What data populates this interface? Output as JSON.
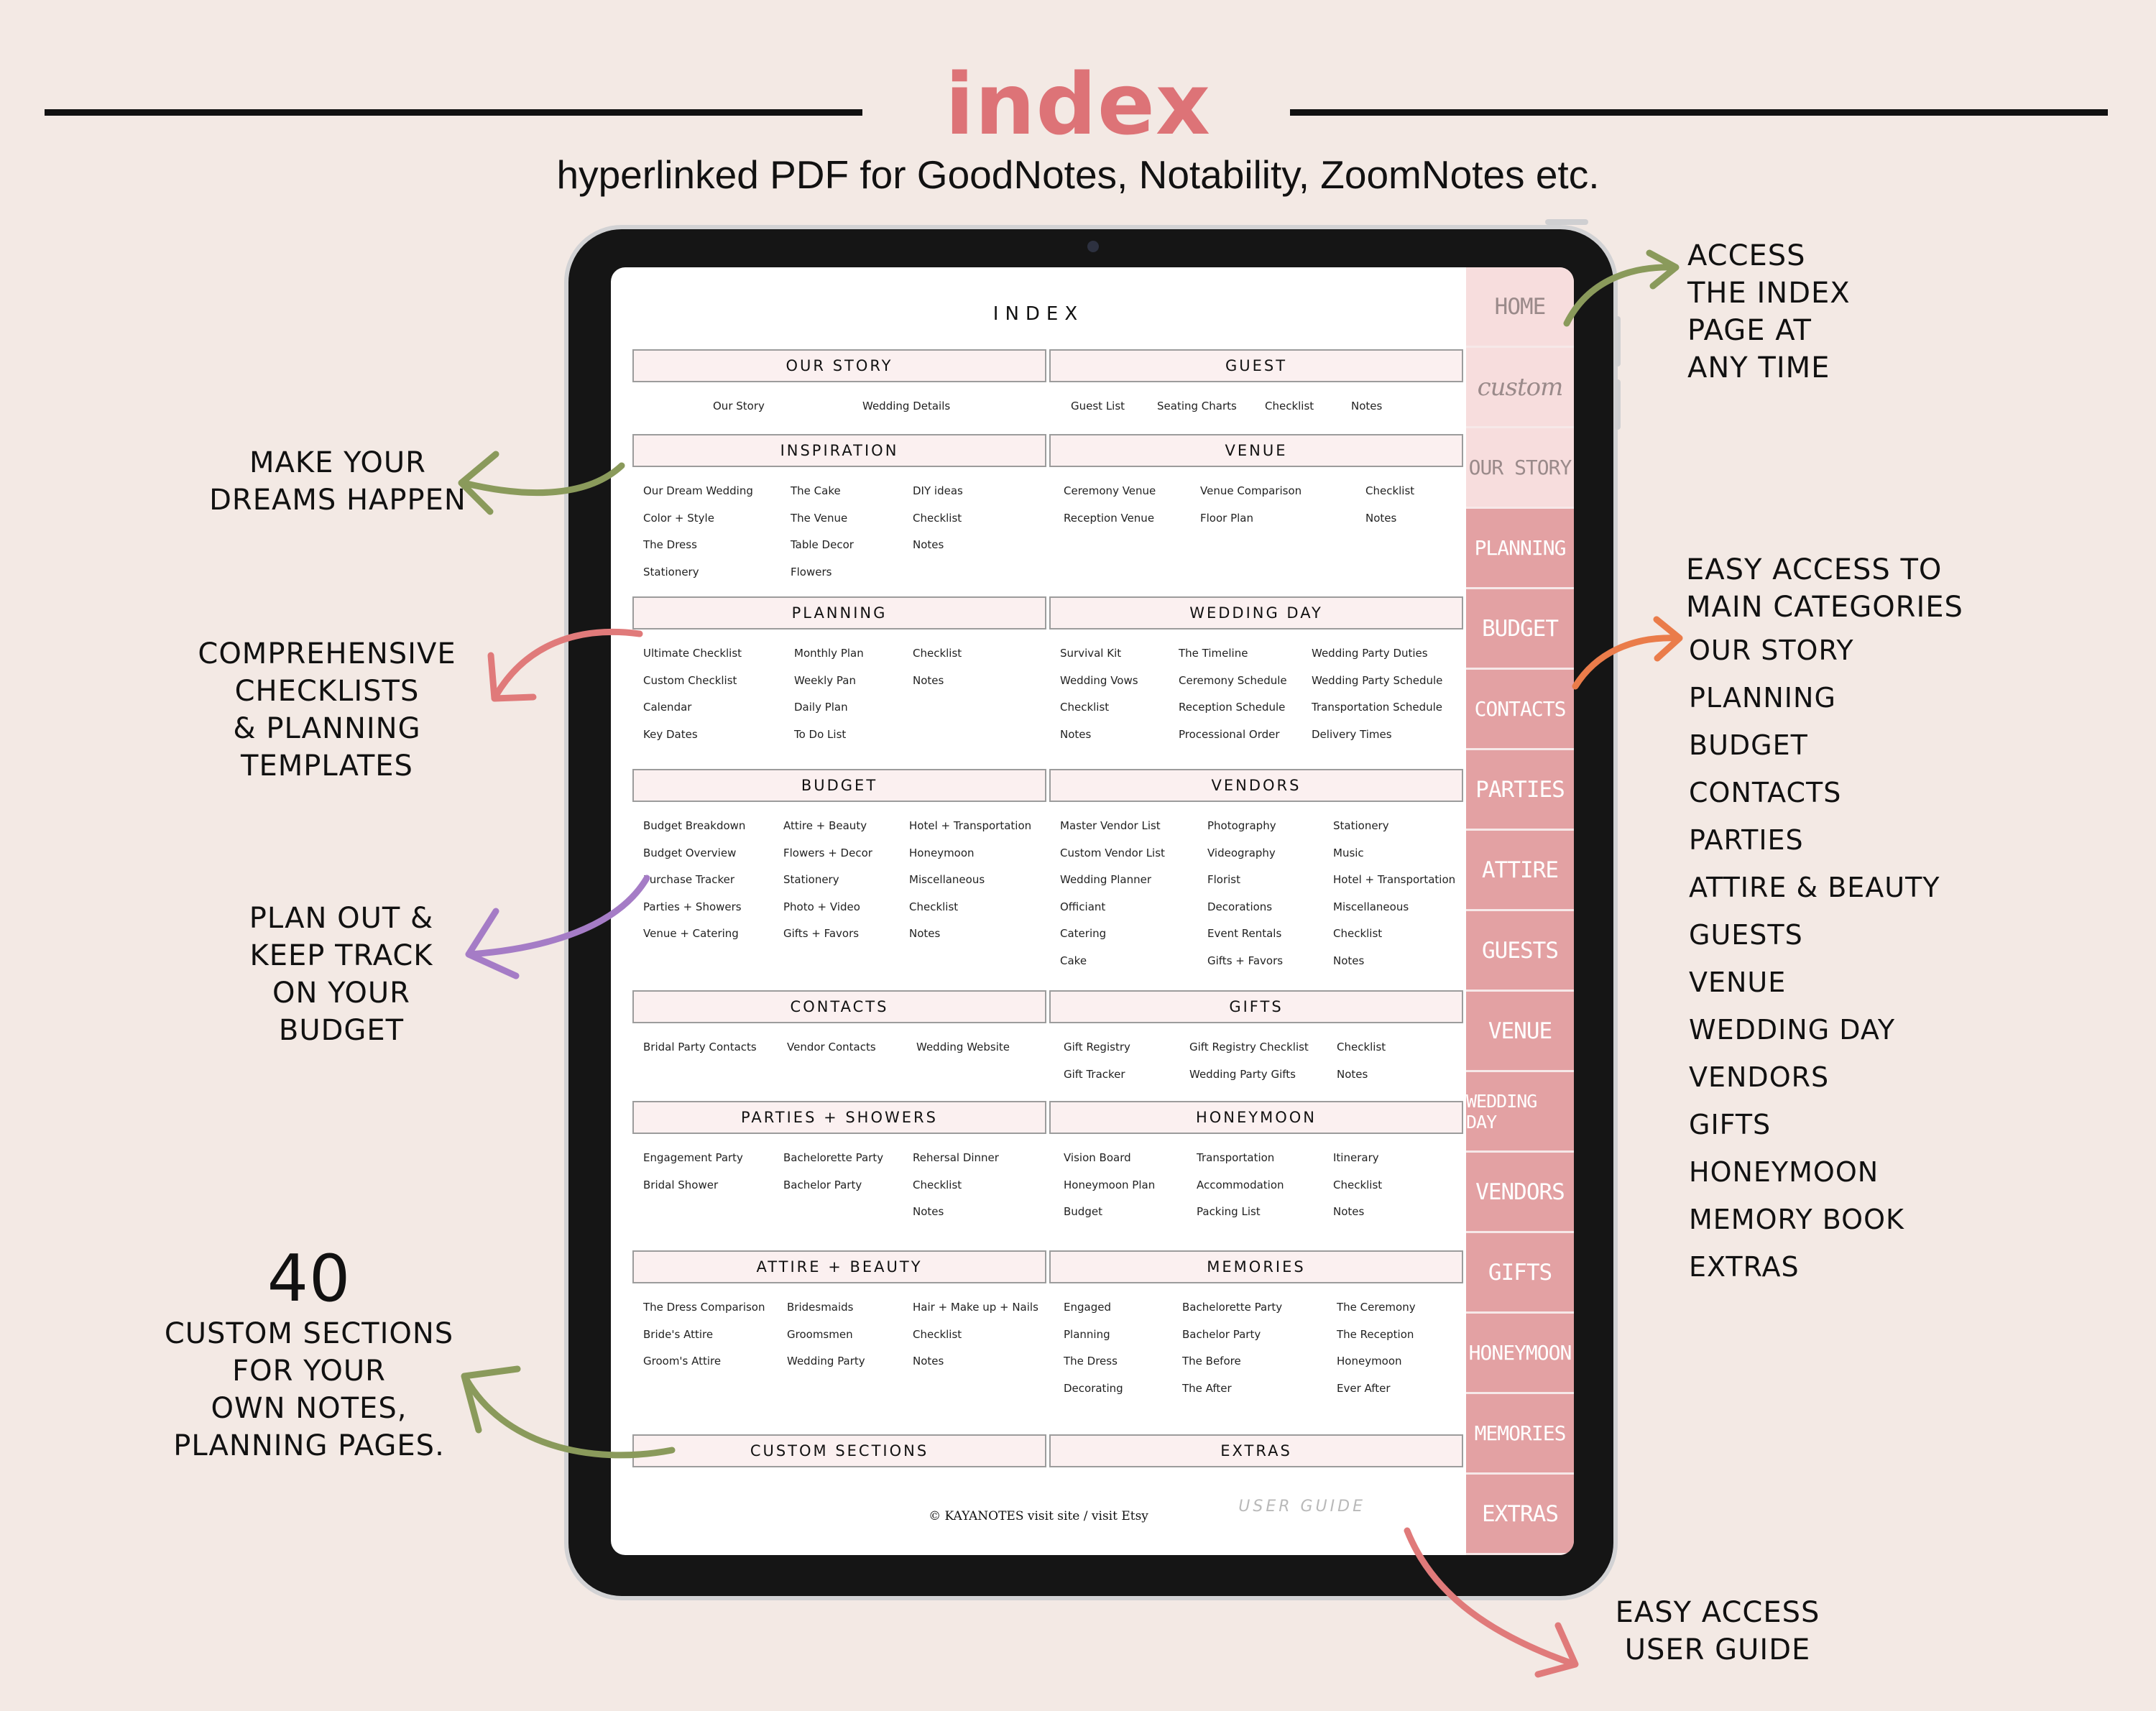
{
  "header": {
    "title": "index",
    "subtitle": "hyperlinked PDF for GoodNotes, Notability, ZoomNotes etc."
  },
  "annotations": {
    "make_dreams": [
      "MAKE YOUR",
      "DREAMS HAPPEN"
    ],
    "checklists": [
      "COMPREHENSIVE",
      "CHECKLISTS",
      "& PLANNING",
      "TEMPLATES"
    ],
    "budget": [
      "PLAN OUT &",
      "KEEP TRACK",
      "ON YOUR",
      "BUDGET"
    ],
    "custom_big": "40",
    "custom": [
      "CUSTOM SECTIONS",
      "FOR YOUR",
      "OWN NOTES,",
      "PLANNING PAGES."
    ],
    "access_index": [
      "ACCESS",
      "THE INDEX",
      "PAGE AT",
      "ANY TIME"
    ],
    "easy_access": [
      "EASY ACCESS TO",
      "MAIN CATEGORIES"
    ],
    "categories": [
      "OUR STORY",
      "PLANNING",
      "BUDGET",
      "CONTACTS",
      "PARTIES",
      "ATTIRE & BEAUTY",
      "GUESTS",
      "VENUE",
      "WEDDING DAY",
      "VENDORS",
      "GIFTS",
      "HONEYMOON",
      "MEMORY BOOK",
      "EXTRAS"
    ],
    "user_guide": [
      "EASY ACCESS",
      "USER GUIDE"
    ]
  },
  "colors": {
    "title": "#dd7377",
    "tab_light": "#f7dddd",
    "tab_dark": "#e3a1a3",
    "arrow_green": "#8a9a5b",
    "arrow_pink": "#e07a7a",
    "arrow_purple": "#a57cc6",
    "arrow_orange": "#ea7c4a"
  },
  "page": {
    "title": "INDEX",
    "user_guide": "USER GUIDE",
    "footer": "© KAYANOTES visit site / visit Etsy"
  },
  "sections": [
    {
      "name": "OUR STORY",
      "items": [
        "Our Story",
        "Wedding Details"
      ]
    },
    {
      "name": "GUEST",
      "items": [
        "Guest List",
        "Seating Charts",
        "Checklist",
        "Notes"
      ]
    },
    {
      "name": "INSPIRATION",
      "items": [
        "Our Dream Wedding",
        "Color + Style",
        "The Dress",
        "Stationery",
        "The Cake",
        "The Venue",
        "Table Decor",
        "Flowers",
        "DIY ideas",
        "Checklist",
        "Notes"
      ]
    },
    {
      "name": "VENUE",
      "items": [
        "Ceremony Venue",
        "Reception Venue",
        "Venue Comparison",
        "Floor Plan",
        "Checklist",
        "Notes"
      ]
    },
    {
      "name": "PLANNING",
      "items": [
        "Ultimate Checklist",
        "Custom Checklist",
        "Calendar",
        "Key Dates",
        "Monthly Plan",
        "Weekly Pan",
        "Daily Plan",
        "To Do List",
        "Checklist",
        "Notes"
      ]
    },
    {
      "name": "WEDDING DAY",
      "items": [
        "Survival Kit",
        "Wedding Vows",
        "Checklist",
        "Notes",
        "The Timeline",
        "Ceremony Schedule",
        "Reception Schedule",
        "Processional Order",
        "Wedding Party Duties",
        "Wedding Party Schedule",
        "Transportation Schedule",
        "Delivery Times"
      ]
    },
    {
      "name": "BUDGET",
      "items": [
        "Budget Breakdown",
        "Budget Overview",
        "Purchase Tracker",
        "Parties + Showers",
        "Venue + Catering",
        "Attire + Beauty",
        "Flowers + Decor",
        "Stationery",
        "Photo + Video",
        "Gifts + Favors",
        "Hotel + Transportation",
        "Honeymoon",
        "Miscellaneous",
        "Checklist",
        "Notes"
      ]
    },
    {
      "name": "VENDORS",
      "items": [
        "Master Vendor List",
        "Custom Vendor List",
        "Wedding Planner",
        "Officiant",
        "Catering",
        "Cake",
        "Photography",
        "Videography",
        "Florist",
        "Decorations",
        "Event Rentals",
        "Gifts + Favors",
        "Stationery",
        "Music",
        "Hotel + Transportation",
        "Miscellaneous",
        "Checklist",
        "Notes"
      ]
    },
    {
      "name": "CONTACTS",
      "items": [
        "Bridal Party Contacts",
        "Vendor Contacts",
        "Wedding Website"
      ]
    },
    {
      "name": "GIFTS",
      "items": [
        "Gift Registry",
        "Gift Tracker",
        "Gift Registry Checklist",
        "Wedding Party Gifts",
        "Checklist",
        "Notes"
      ]
    },
    {
      "name": "PARTIES + SHOWERS",
      "items": [
        "Engagement Party",
        "Bridal Shower",
        "Bachelorette Party",
        "Bachelor Party",
        "Rehersal Dinner",
        "Checklist",
        "Notes"
      ]
    },
    {
      "name": "HONEYMOON",
      "items": [
        "Vision Board",
        "Honeymoon Plan",
        "Budget",
        "Transportation",
        "Accommodation",
        "Packing List",
        "Itinerary",
        "Checklist",
        "Notes"
      ]
    },
    {
      "name": "ATTIRE + BEAUTY",
      "items": [
        "The Dress Comparison",
        "Bride's Attire",
        "Groom's Attire",
        "Bridesmaids",
        "Groomsmen",
        "Wedding Party",
        "Hair + Make up + Nails",
        "Checklist",
        "Notes"
      ]
    },
    {
      "name": "MEMORIES",
      "items": [
        "Engaged",
        "Planning",
        "The Dress",
        "Decorating",
        "Bachelorette Party",
        "Bachelor Party",
        "The Before",
        "The After",
        "The Ceremony",
        "The Reception",
        "Honeymoon",
        "Ever After"
      ]
    },
    {
      "name": "CUSTOM SECTIONS",
      "items": []
    },
    {
      "name": "EXTRAS",
      "items": []
    }
  ],
  "tabs": [
    "HOME",
    "custom",
    "OUR STORY",
    "PLANNING",
    "BUDGET",
    "CONTACTS",
    "PARTIES",
    "ATTIRE",
    "GUESTS",
    "VENUE",
    "WEDDING DAY",
    "VENDORS",
    "GIFTS",
    "HONEYMOON",
    "MEMORIES",
    "EXTRAS"
  ]
}
